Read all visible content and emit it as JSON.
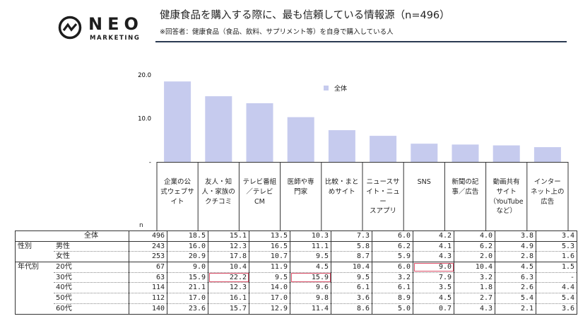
{
  "brand": {
    "name": "NEO",
    "sub": "MARKETING"
  },
  "title": "健康食品を購入する際に、最も信頼している情報源（n=496）",
  "note": "※回答者：健康食品（食品、飲料、サプリメント等）を自身で購入している人",
  "colors": {
    "bar": "#c6cbee",
    "highlight": "#d94d66",
    "accent": "#2b3a52"
  },
  "chart_data": {
    "type": "bar",
    "series_name": "全体",
    "categories": [
      [
        "企業の公",
        "式ウェブサ",
        "イト"
      ],
      [
        "友人・知",
        "人・家族の",
        "クチコミ"
      ],
      [
        "テレビ番組",
        "／テレビ",
        "CM"
      ],
      [
        "医師や専",
        "門家"
      ],
      [
        "比較・まと",
        "めサイト"
      ],
      [
        "ニュースサ",
        "イト・ニュー",
        "スアプリ"
      ],
      [
        "SNS"
      ],
      [
        "新聞の記",
        "事／広告"
      ],
      [
        "動画共有",
        "サイト",
        "（YouTube",
        "など）"
      ],
      [
        "インター",
        "ネット上の",
        "広告"
      ]
    ],
    "values": [
      18.5,
      15.1,
      13.5,
      10.3,
      7.3,
      6.0,
      4.2,
      4.0,
      3.8,
      3.4
    ],
    "ylim": [
      0,
      20
    ],
    "yticks": [
      "20.0",
      "10.0",
      "-"
    ],
    "ytick_values": [
      20,
      10,
      0
    ]
  },
  "table": {
    "n_label": "n",
    "rows": [
      {
        "group": "",
        "label": "全体",
        "n": "496",
        "values": [
          "18.5",
          "15.1",
          "13.5",
          "10.3",
          "7.3",
          "6.0",
          "4.2",
          "4.0",
          "3.8",
          "3.4"
        ],
        "highlight": []
      },
      {
        "group": "性別",
        "label": "男性",
        "n": "243",
        "values": [
          "16.0",
          "12.3",
          "16.5",
          "11.1",
          "5.8",
          "6.2",
          "4.1",
          "6.2",
          "4.9",
          "5.3"
        ],
        "highlight": []
      },
      {
        "group": "",
        "label": "女性",
        "n": "253",
        "values": [
          "20.9",
          "17.8",
          "10.7",
          "9.5",
          "8.7",
          "5.9",
          "4.3",
          "2.0",
          "2.8",
          "1.6"
        ],
        "highlight": []
      },
      {
        "group": "年代別",
        "label": "20代",
        "n": "67",
        "values": [
          "9.0",
          "10.4",
          "11.9",
          "4.5",
          "10.4",
          "6.0",
          "9.0",
          "10.4",
          "4.5",
          "1.5"
        ],
        "highlight": [
          6
        ]
      },
      {
        "group": "",
        "label": "30代",
        "n": "63",
        "values": [
          "15.9",
          "22.2",
          "9.5",
          "15.9",
          "9.5",
          "3.2",
          "7.9",
          "3.2",
          "6.3",
          "-"
        ],
        "highlight": [
          1,
          3
        ]
      },
      {
        "group": "",
        "label": "40代",
        "n": "114",
        "values": [
          "21.1",
          "12.3",
          "14.0",
          "9.6",
          "6.1",
          "6.1",
          "3.5",
          "1.8",
          "2.6",
          "4.4"
        ],
        "highlight": []
      },
      {
        "group": "",
        "label": "50代",
        "n": "112",
        "values": [
          "17.0",
          "16.1",
          "17.0",
          "9.8",
          "3.6",
          "8.9",
          "4.5",
          "2.7",
          "5.4",
          "5.4"
        ],
        "highlight": []
      },
      {
        "group": "",
        "label": "60代",
        "n": "140",
        "values": [
          "23.6",
          "15.7",
          "12.9",
          "11.4",
          "8.6",
          "5.0",
          "0.7",
          "4.3",
          "2.1",
          "3.6"
        ],
        "highlight": []
      }
    ]
  }
}
